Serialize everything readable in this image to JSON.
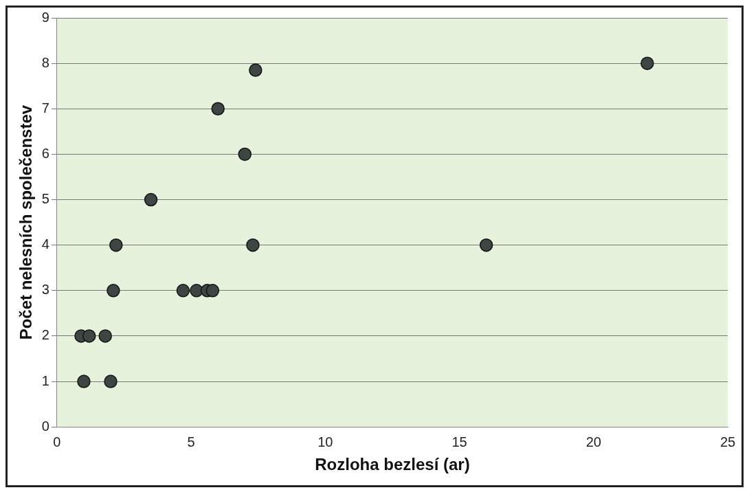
{
  "chart_data": {
    "type": "scatter",
    "xlabel": "Rozloha bezlesí (ar)",
    "ylabel": "Počet nelesních společenstev",
    "x": [
      22,
      7.4,
      6,
      7,
      3.5,
      2.2,
      7.3,
      16,
      2.1,
      4.7,
      5.2,
      5.6,
      5.8,
      0.9,
      1.2,
      1.8,
      1,
      2
    ],
    "series": [
      {
        "color": "#3e4644",
        "values": [
          8,
          7.85,
          7,
          6,
          5,
          4,
          4,
          4,
          3,
          3,
          3,
          3,
          3,
          2,
          2,
          2,
          1,
          1
        ]
      }
    ],
    "xlim": [
      0,
      25
    ],
    "xticks": [
      0,
      5,
      10,
      15,
      20,
      25
    ],
    "ylim": [
      0,
      9
    ],
    "yticks": [
      0,
      1,
      2,
      3,
      4,
      5,
      6,
      7,
      8,
      9
    ],
    "grid": "y",
    "legend": false,
    "marker": "circle"
  }
}
